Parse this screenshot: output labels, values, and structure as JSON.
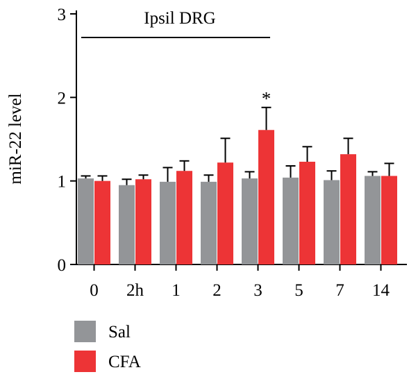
{
  "chart_data": {
    "type": "bar",
    "ylabel": "miR-22 level",
    "ylim": [
      0,
      3
    ],
    "yticks": [
      0,
      1,
      2,
      3
    ],
    "categories": [
      "0",
      "2h",
      "1",
      "2",
      "3",
      "5",
      "7",
      "14"
    ],
    "series": [
      {
        "name": "Sal",
        "color": "#939598",
        "values": [
          1.03,
          0.95,
          0.99,
          0.99,
          1.03,
          1.04,
          1.01,
          1.06
        ],
        "errors": [
          0.03,
          0.07,
          0.17,
          0.08,
          0.08,
          0.14,
          0.11,
          0.05
        ]
      },
      {
        "name": "CFA",
        "color": "#ed3436",
        "values": [
          1.0,
          1.02,
          1.12,
          1.22,
          1.61,
          1.23,
          1.32,
          1.06
        ],
        "errors": [
          0.06,
          0.05,
          0.12,
          0.29,
          0.27,
          0.18,
          0.19,
          0.15
        ]
      }
    ],
    "annotations": {
      "bracket_label": "Ipsil DRG",
      "significance": [
        {
          "category": "3",
          "series": "CFA",
          "marker": "*"
        }
      ]
    },
    "legend": "bottom-left",
    "grid": false
  }
}
